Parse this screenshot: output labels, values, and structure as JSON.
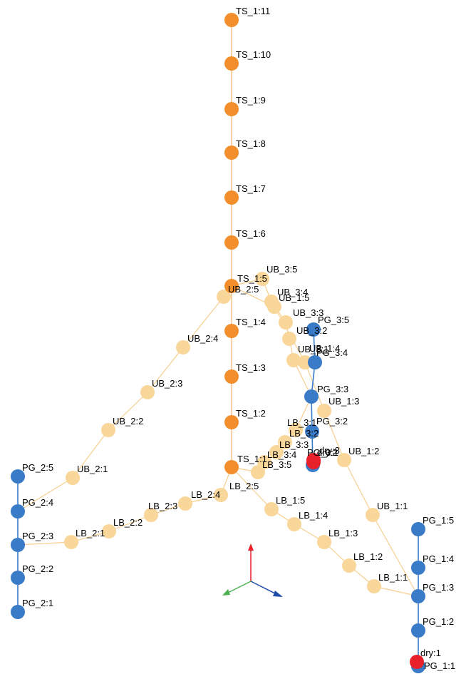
{
  "colors": {
    "background": "#ffffff",
    "trunk": "#f28e2b",
    "branch": "#f9d69a",
    "pg": "#3a7bc8",
    "pg_line": "#3a7bc8",
    "dry": "#e8202a",
    "edge_trunk": "#f5b06a",
    "edge_branch": "#f6cf8e"
  },
  "axes_gizmo": {
    "x_color": "#1f4ea8",
    "y_color": "#e8202a",
    "z_color": "#4caf50"
  },
  "labels": {
    "TS_1:11": "TS_1:11",
    "TS_1:10": "TS_1:10",
    "TS_1:9": "TS_1:9",
    "TS_1:8": "TS_1:8",
    "TS_1:7": "TS_1:7",
    "TS_1:6": "TS_1:6",
    "TS_1:5": "TS_1:5",
    "TS_1:4": "TS_1:4",
    "TS_1:3": "TS_1:3",
    "TS_1:2": "TS_1:2",
    "TS_1:1": "TS_1:1",
    "UB_3:5": "UB_3:5",
    "UB_3:4": "UB_3:4",
    "UB_3:3": "UB_3:3",
    "UB_3:2": "UB_3:2",
    "UB_3:1": "UB_3:1",
    "UB_2:5": "UB_2:5",
    "UB_2:4": "UB_2:4",
    "UB_2:3": "UB_2:3",
    "UB_2:2": "UB_2:2",
    "UB_2:1": "UB_2:1",
    "UB_1:5": "UB_1:5",
    "UB_1:4": "UB_1:4",
    "UB_1:3": "UB_1:3",
    "UB_1:2": "UB_1:2",
    "UB_1:1": "UB_1:1",
    "LB_3:5": "LB_3:5",
    "LB_3:4": "LB_3:4",
    "LB_3:3": "LB_3:3",
    "LB_3:2": "LB_3:2",
    "LB_3:1": "LB_3:1",
    "LB_2:5": "LB_2:5",
    "LB_2:4": "LB_2:4",
    "LB_2:3": "LB_2:3",
    "LB_2:2": "LB_2:2",
    "LB_2:1": "LB_2:1",
    "LB_1:5": "LB_1:5",
    "LB_1:4": "LB_1:4",
    "LB_1:3": "LB_1:3",
    "LB_1:2": "LB_1:2",
    "LB_1:1": "LB_1:1",
    "PG_1:5": "PG_1:5",
    "PG_1:4": "PG_1:4",
    "PG_1:3": "PG_1:3",
    "PG_1:2": "PG_1:2",
    "PG_1:1": "PG_1:1",
    "PG_2:5": "PG_2:5",
    "PG_2:4": "PG_2:4",
    "PG_2:3": "PG_2:3",
    "PG_2:2": "PG_2:2",
    "PG_2:1": "PG_2:1",
    "PG_3:5": "PG_3:5",
    "PG_3:4": "PG_3:4",
    "PG_3:3": "PG_3:3",
    "PG_3:2": "PG_3:2",
    "PG_3:1": "PG_3:1",
    "dry:1": "dry:1",
    "dry:2": "dry:2",
    "dry:3": "dry:3"
  }
}
